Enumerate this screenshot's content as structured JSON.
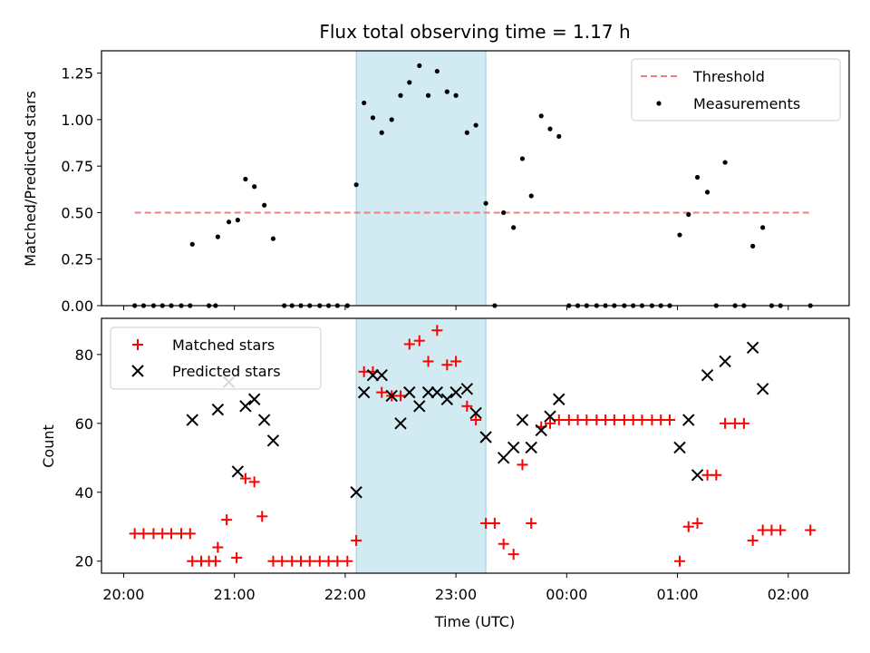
{
  "chart_data": {
    "type": "scatter",
    "title": "Flux total observing time = 1.17 h",
    "xlabel": "Time (UTC)",
    "x_ticks": [
      "20:00",
      "21:00",
      "22:00",
      "23:00",
      "00:00",
      "01:00",
      "02:00"
    ],
    "x_range_hours": [
      19.8,
      26.55
    ],
    "shaded_span_hours": [
      22.1,
      23.27
    ],
    "shade_color": "#add8e6",
    "panels": [
      {
        "ylabel": "Matched/Predicted stars",
        "ylim": [
          0,
          1.37
        ],
        "y_ticks": [
          "0.00",
          "0.25",
          "0.50",
          "0.75",
          "1.00",
          "1.25"
        ],
        "legend_position": "top-right",
        "threshold": {
          "name": "Threshold",
          "value": 0.5,
          "x_start": 20.1,
          "x_end": 26.2,
          "color": "#f08080"
        },
        "series": [
          {
            "name": "Measurements",
            "marker": "dot",
            "color": "#000000",
            "points": [
              [
                20.1,
                0
              ],
              [
                20.18,
                0
              ],
              [
                20.27,
                0
              ],
              [
                20.35,
                0
              ],
              [
                20.43,
                0
              ],
              [
                20.52,
                0
              ],
              [
                20.6,
                0
              ],
              [
                20.62,
                0.33
              ],
              [
                20.77,
                0
              ],
              [
                20.83,
                0
              ],
              [
                20.85,
                0.37
              ],
              [
                20.95,
                0.45
              ],
              [
                21.03,
                0.46
              ],
              [
                21.1,
                0.68
              ],
              [
                21.18,
                0.64
              ],
              [
                21.27,
                0.54
              ],
              [
                21.35,
                0.36
              ],
              [
                21.45,
                0
              ],
              [
                21.52,
                0
              ],
              [
                21.6,
                0
              ],
              [
                21.68,
                0
              ],
              [
                21.77,
                0
              ],
              [
                21.85,
                0
              ],
              [
                21.93,
                0
              ],
              [
                22.02,
                0
              ],
              [
                22.1,
                0.65
              ],
              [
                22.17,
                1.09
              ],
              [
                22.25,
                1.01
              ],
              [
                22.33,
                0.93
              ],
              [
                22.42,
                1.0
              ],
              [
                22.5,
                1.13
              ],
              [
                22.58,
                1.2
              ],
              [
                22.67,
                1.29
              ],
              [
                22.75,
                1.13
              ],
              [
                22.83,
                1.26
              ],
              [
                22.92,
                1.15
              ],
              [
                23.0,
                1.13
              ],
              [
                23.1,
                0.93
              ],
              [
                23.18,
                0.97
              ],
              [
                23.27,
                0.55
              ],
              [
                23.35,
                0
              ],
              [
                23.43,
                0.5
              ],
              [
                23.52,
                0.42
              ],
              [
                23.6,
                0.79
              ],
              [
                23.68,
                0.59
              ],
              [
                23.77,
                1.02
              ],
              [
                23.85,
                0.95
              ],
              [
                23.93,
                0.91
              ],
              [
                24.02,
                0
              ],
              [
                24.1,
                0
              ],
              [
                24.18,
                0
              ],
              [
                24.27,
                0
              ],
              [
                24.35,
                0
              ],
              [
                24.43,
                0
              ],
              [
                24.52,
                0
              ],
              [
                24.6,
                0
              ],
              [
                24.68,
                0
              ],
              [
                24.77,
                0
              ],
              [
                24.85,
                0
              ],
              [
                24.93,
                0
              ],
              [
                25.02,
                0.38
              ],
              [
                25.1,
                0.49
              ],
              [
                25.18,
                0.69
              ],
              [
                25.27,
                0.61
              ],
              [
                25.35,
                0
              ],
              [
                25.43,
                0.77
              ],
              [
                25.52,
                0
              ],
              [
                25.6,
                0
              ],
              [
                25.68,
                0.32
              ],
              [
                25.77,
                0.42
              ],
              [
                25.85,
                0
              ],
              [
                25.93,
                0
              ],
              [
                26.2,
                0
              ]
            ]
          }
        ]
      },
      {
        "ylabel": "Count",
        "ylim": [
          16.5,
          90.5
        ],
        "y_ticks": [
          "20",
          "40",
          "60",
          "80"
        ],
        "legend_position": "top-left",
        "series": [
          {
            "name": "Matched stars",
            "marker": "plus",
            "color": "#ff0000",
            "points": [
              [
                20.1,
                28
              ],
              [
                20.18,
                28
              ],
              [
                20.27,
                28
              ],
              [
                20.35,
                28
              ],
              [
                20.43,
                28
              ],
              [
                20.52,
                28
              ],
              [
                20.6,
                28
              ],
              [
                20.62,
                20
              ],
              [
                20.7,
                20
              ],
              [
                20.77,
                20
              ],
              [
                20.83,
                20
              ],
              [
                20.85,
                24
              ],
              [
                20.93,
                32
              ],
              [
                21.02,
                21
              ],
              [
                21.1,
                44
              ],
              [
                21.18,
                43
              ],
              [
                21.25,
                33
              ],
              [
                21.35,
                20
              ],
              [
                21.43,
                20
              ],
              [
                21.52,
                20
              ],
              [
                21.6,
                20
              ],
              [
                21.68,
                20
              ],
              [
                21.77,
                20
              ],
              [
                21.85,
                20
              ],
              [
                21.93,
                20
              ],
              [
                22.02,
                20
              ],
              [
                22.1,
                26
              ],
              [
                22.17,
                75
              ],
              [
                22.25,
                75
              ],
              [
                22.33,
                69
              ],
              [
                22.42,
                68
              ],
              [
                22.5,
                68
              ],
              [
                22.58,
                83
              ],
              [
                22.67,
                84
              ],
              [
                22.75,
                78
              ],
              [
                22.83,
                87
              ],
              [
                22.92,
                77
              ],
              [
                23.0,
                78
              ],
              [
                23.1,
                65
              ],
              [
                23.18,
                61
              ],
              [
                23.27,
                31
              ],
              [
                23.35,
                31
              ],
              [
                23.43,
                25
              ],
              [
                23.52,
                22
              ],
              [
                23.6,
                48
              ],
              [
                23.68,
                31
              ],
              [
                23.77,
                59
              ],
              [
                23.85,
                60
              ],
              [
                23.93,
                61
              ],
              [
                24.02,
                61
              ],
              [
                24.1,
                61
              ],
              [
                24.18,
                61
              ],
              [
                24.27,
                61
              ],
              [
                24.35,
                61
              ],
              [
                24.43,
                61
              ],
              [
                24.52,
                61
              ],
              [
                24.6,
                61
              ],
              [
                24.68,
                61
              ],
              [
                24.77,
                61
              ],
              [
                24.85,
                61
              ],
              [
                24.93,
                61
              ],
              [
                25.02,
                20
              ],
              [
                25.1,
                30
              ],
              [
                25.18,
                31
              ],
              [
                25.27,
                45
              ],
              [
                25.35,
                45
              ],
              [
                25.43,
                60
              ],
              [
                25.52,
                60
              ],
              [
                25.6,
                60
              ],
              [
                25.68,
                26
              ],
              [
                25.77,
                29
              ],
              [
                25.85,
                29
              ],
              [
                25.93,
                29
              ],
              [
                26.2,
                29
              ]
            ]
          },
          {
            "name": "Predicted stars",
            "marker": "x",
            "color": "#000000",
            "points": [
              [
                20.62,
                61
              ],
              [
                20.85,
                64
              ],
              [
                20.95,
                72
              ],
              [
                21.03,
                46
              ],
              [
                21.1,
                65
              ],
              [
                21.18,
                67
              ],
              [
                21.27,
                61
              ],
              [
                21.35,
                55
              ],
              [
                22.1,
                40
              ],
              [
                22.17,
                69
              ],
              [
                22.25,
                74
              ],
              [
                22.33,
                74
              ],
              [
                22.42,
                68
              ],
              [
                22.5,
                60
              ],
              [
                22.58,
                69
              ],
              [
                22.67,
                65
              ],
              [
                22.75,
                69
              ],
              [
                22.83,
                69
              ],
              [
                22.92,
                67
              ],
              [
                23.0,
                69
              ],
              [
                23.1,
                70
              ],
              [
                23.18,
                63
              ],
              [
                23.27,
                56
              ],
              [
                23.43,
                50
              ],
              [
                23.52,
                53
              ],
              [
                23.6,
                61
              ],
              [
                23.68,
                53
              ],
              [
                23.77,
                58
              ],
              [
                23.85,
                62
              ],
              [
                23.93,
                67
              ],
              [
                25.02,
                53
              ],
              [
                25.1,
                61
              ],
              [
                25.18,
                45
              ],
              [
                25.27,
                74
              ],
              [
                25.43,
                78
              ],
              [
                25.68,
                82
              ],
              [
                25.77,
                70
              ]
            ]
          }
        ]
      }
    ]
  }
}
